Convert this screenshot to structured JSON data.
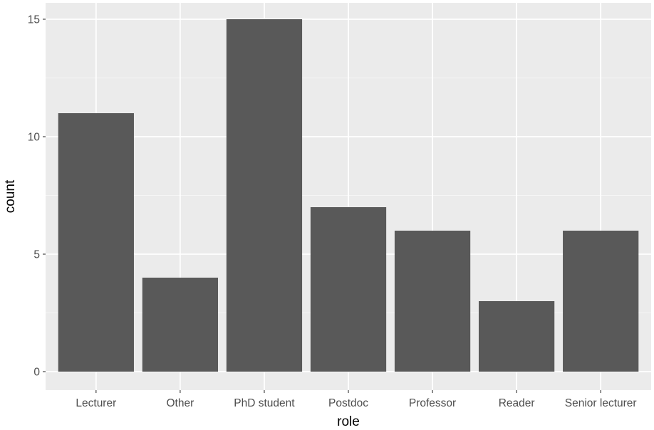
{
  "chart_data": {
    "type": "bar",
    "categories": [
      "Lecturer",
      "Other",
      "PhD student",
      "Postdoc",
      "Professor",
      "Reader",
      "Senior lecturer"
    ],
    "values": [
      11,
      4,
      15,
      7,
      6,
      3,
      6
    ],
    "title": "",
    "xlabel": "role",
    "ylabel": "count",
    "ylim": [
      0,
      15.75
    ],
    "yticks": [
      0,
      5,
      10,
      15
    ],
    "minor_yticks": [
      2.5,
      7.5,
      12.5
    ],
    "grid": true
  },
  "colors": {
    "panel_background": "#ebebeb",
    "grid_major": "#ffffff",
    "grid_minor": "#f5f5f5",
    "bar_fill": "#595959",
    "tick_mark": "#333333",
    "tick_label": "#4d4d4d",
    "axis_title": "#000000"
  }
}
